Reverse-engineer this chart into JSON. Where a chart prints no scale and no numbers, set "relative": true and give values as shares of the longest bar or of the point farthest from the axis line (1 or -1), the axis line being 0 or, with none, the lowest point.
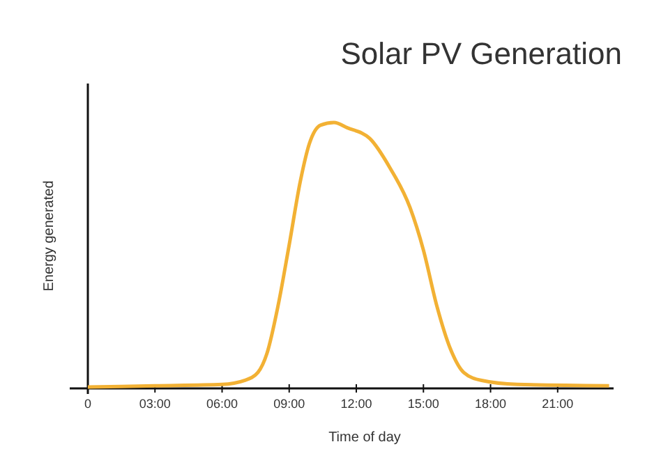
{
  "chart_data": {
    "type": "line",
    "title": "Solar PV Generation",
    "xlabel": "Time of day",
    "ylabel": "Energy generated",
    "relative": true,
    "xlim": [
      0,
      23.5
    ],
    "xticks": [
      0,
      {
        "value": 3,
        "label": "03:00"
      },
      {
        "value": 6,
        "label": "06:00"
      },
      {
        "value": 9,
        "label": "09:00"
      },
      {
        "value": 12,
        "label": "12:00"
      },
      {
        "value": 15,
        "label": "15:00"
      },
      {
        "value": 18,
        "label": "18:00"
      },
      {
        "value": 21,
        "label": "21:00"
      }
    ],
    "grid": false,
    "marker": "none",
    "line_style": "solid",
    "series": [
      {
        "color": "#f2b134",
        "x": [
          0,
          3,
          6,
          7,
          7.6,
          8,
          8.5,
          9,
          9.5,
          9.9,
          10.4,
          11,
          11.6,
          12.6,
          13.5,
          14.4,
          15,
          15.6,
          16.2,
          16.8,
          17.6,
          19.2,
          23.3
        ],
        "values": [
          0.005,
          0.01,
          0.015,
          0.03,
          0.06,
          0.13,
          0.31,
          0.54,
          0.78,
          0.92,
          0.99,
          1,
          0.98,
          0.94,
          0.83,
          0.68,
          0.52,
          0.31,
          0.15,
          0.06,
          0.03,
          0.015,
          0.01
        ]
      }
    ]
  }
}
